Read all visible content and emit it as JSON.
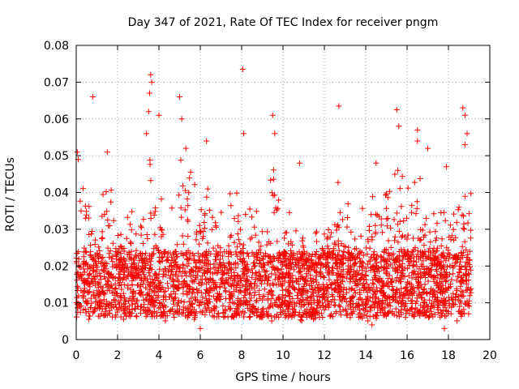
{
  "chart_data": {
    "type": "scatter",
    "title": "Day 347 of 2021, Rate Of TEC Index for receiver pngm",
    "xlabel": "GPS time / hours",
    "ylabel": "ROTI / TECUs",
    "xlim": [
      0,
      20
    ],
    "ylim": [
      0,
      0.08
    ],
    "xticks": [
      0,
      2,
      4,
      6,
      8,
      10,
      12,
      14,
      16,
      18,
      20
    ],
    "yticks": [
      0,
      0.01,
      0.02,
      0.03,
      0.04,
      0.05,
      0.06,
      0.07,
      0.08
    ],
    "xtick_labels": [
      "0",
      "2",
      "4",
      "6",
      "8",
      "10",
      "12",
      "14",
      "16",
      "18",
      "20"
    ],
    "ytick_labels": [
      "0",
      "0.01",
      "0.02",
      "0.03",
      "0.04",
      "0.05",
      "0.06",
      "0.07",
      "0.08"
    ],
    "grid": true,
    "marker": "+",
    "marker_color": "#ff0000",
    "series": [
      {
        "name": "ROTI",
        "points_generation": "dense cloud of samples between 0 and 19.1 hours, bulk between 0.005 and 0.03 TECU",
        "notable_points": [
          {
            "x": 0.05,
            "y": 0.051
          },
          {
            "x": 0.1,
            "y": 0.049
          },
          {
            "x": 0.8,
            "y": 0.066
          },
          {
            "x": 1.5,
            "y": 0.051
          },
          {
            "x": 3.4,
            "y": 0.056
          },
          {
            "x": 3.5,
            "y": 0.062
          },
          {
            "x": 3.55,
            "y": 0.067
          },
          {
            "x": 3.6,
            "y": 0.072
          },
          {
            "x": 3.65,
            "y": 0.07
          },
          {
            "x": 4.0,
            "y": 0.061
          },
          {
            "x": 5.0,
            "y": 0.066
          },
          {
            "x": 5.1,
            "y": 0.06
          },
          {
            "x": 5.3,
            "y": 0.052
          },
          {
            "x": 6.3,
            "y": 0.054
          },
          {
            "x": 8.05,
            "y": 0.0735
          },
          {
            "x": 8.1,
            "y": 0.056
          },
          {
            "x": 9.5,
            "y": 0.061
          },
          {
            "x": 9.6,
            "y": 0.056
          },
          {
            "x": 10.8,
            "y": 0.048
          },
          {
            "x": 12.7,
            "y": 0.0635
          },
          {
            "x": 14.5,
            "y": 0.048
          },
          {
            "x": 15.5,
            "y": 0.0625
          },
          {
            "x": 15.6,
            "y": 0.058
          },
          {
            "x": 15.55,
            "y": 0.046
          },
          {
            "x": 16.5,
            "y": 0.057
          },
          {
            "x": 16.5,
            "y": 0.054
          },
          {
            "x": 17.0,
            "y": 0.052
          },
          {
            "x": 17.9,
            "y": 0.047
          },
          {
            "x": 18.7,
            "y": 0.063
          },
          {
            "x": 18.8,
            "y": 0.061
          },
          {
            "x": 18.9,
            "y": 0.056
          },
          {
            "x": 18.8,
            "y": 0.053
          },
          {
            "x": 17.8,
            "y": 0.003
          },
          {
            "x": 6.0,
            "y": 0.003
          },
          {
            "x": 14.3,
            "y": 0.004
          }
        ]
      }
    ]
  }
}
